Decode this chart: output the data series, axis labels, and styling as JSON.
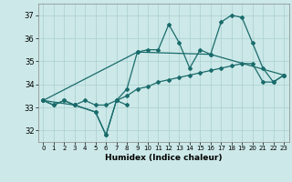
{
  "title": "",
  "xlabel": "Humidex (Indice chaleur)",
  "ylabel": "",
  "bg_color": "#cce8e8",
  "line_color": "#1a6b6b",
  "grid_color": "#aacfcf",
  "xlim": [
    -0.5,
    23.5
  ],
  "ylim": [
    31.5,
    37.5
  ],
  "yticks": [
    32,
    33,
    34,
    35,
    36,
    37
  ],
  "xtick_labels": [
    "0",
    "1",
    "2",
    "3",
    "4",
    "5",
    "6",
    "7",
    "8",
    "9",
    "10",
    "11",
    "12",
    "13",
    "14",
    "15",
    "16",
    "17",
    "18",
    "19",
    "20",
    "21",
    "22",
    "23"
  ],
  "series2": {
    "line1_x": [
      0,
      1,
      2,
      3,
      5,
      6,
      7,
      8
    ],
    "line1_y": [
      33.3,
      33.1,
      33.3,
      33.1,
      32.8,
      31.8,
      33.3,
      33.1
    ],
    "line2_x": [
      0,
      3,
      5,
      6,
      7,
      8,
      9,
      10,
      11,
      12,
      13,
      14,
      15,
      16,
      17,
      18,
      19,
      20,
      21,
      22,
      23
    ],
    "line2_y": [
      33.3,
      33.1,
      32.8,
      31.8,
      33.3,
      33.8,
      35.4,
      35.5,
      35.5,
      36.6,
      35.8,
      34.7,
      35.5,
      35.3,
      36.7,
      37.0,
      36.9,
      35.8,
      34.7,
      34.1,
      34.4
    ],
    "line3_x": [
      0,
      9,
      16,
      23
    ],
    "line3_y": [
      33.3,
      35.4,
      35.3,
      34.4
    ],
    "line4_x": [
      0,
      1,
      2,
      3,
      4,
      5,
      6,
      7,
      8,
      9,
      10,
      11,
      12,
      13,
      14,
      15,
      16,
      17,
      18,
      19,
      20,
      21,
      22,
      23
    ],
    "line4_y": [
      33.3,
      33.1,
      33.3,
      33.1,
      33.3,
      33.1,
      33.1,
      33.3,
      33.5,
      33.8,
      33.9,
      34.1,
      34.2,
      34.3,
      34.4,
      34.5,
      34.6,
      34.7,
      34.8,
      34.9,
      34.9,
      34.1,
      34.1,
      34.4
    ]
  }
}
